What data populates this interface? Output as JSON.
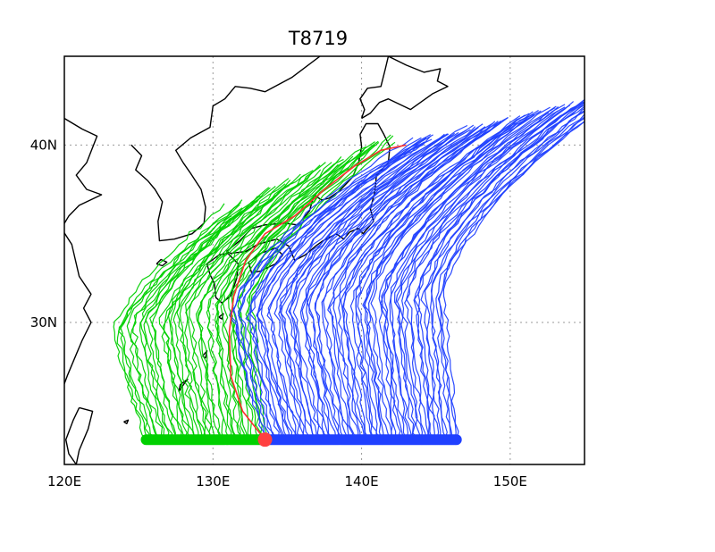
{
  "title": "T8719",
  "map": {
    "lon_range": [
      120,
      155
    ],
    "lat_range": [
      22,
      45
    ],
    "x_ticks": [
      {
        "value": 120,
        "label": "120E"
      },
      {
        "value": 130,
        "label": "130E"
      },
      {
        "value": 140,
        "label": "140E"
      },
      {
        "value": 150,
        "label": "150E"
      }
    ],
    "y_ticks": [
      {
        "value": 30,
        "label": "30N"
      },
      {
        "value": 40,
        "label": "40N"
      }
    ],
    "grid": true,
    "colors": {
      "west_tracks": "#00d000",
      "east_tracks": "#2040ff",
      "reference_track": "#ff3030",
      "origin_marker": "#ff4040",
      "coastline": "#000000"
    }
  },
  "tracks": {
    "start_latitude": 23.4,
    "start_lon_range": [
      125.5,
      146.5
    ],
    "split_lon": 133.5,
    "west_count": 42,
    "east_count": 70
  },
  "reference_track": {
    "points": [
      [
        133.5,
        23.4
      ],
      [
        132.0,
        25.0
      ],
      [
        131.2,
        27.0
      ],
      [
        131.1,
        29.5
      ],
      [
        131.4,
        31.5
      ],
      [
        132.2,
        33.5
      ],
      [
        133.5,
        35.0
      ],
      [
        135.5,
        36.0
      ],
      [
        137.5,
        37.5
      ],
      [
        139.5,
        38.8
      ],
      [
        141.3,
        39.7
      ],
      [
        143.0,
        40.0
      ]
    ]
  },
  "origin_marker": {
    "lon": 133.5,
    "lat": 23.4
  }
}
